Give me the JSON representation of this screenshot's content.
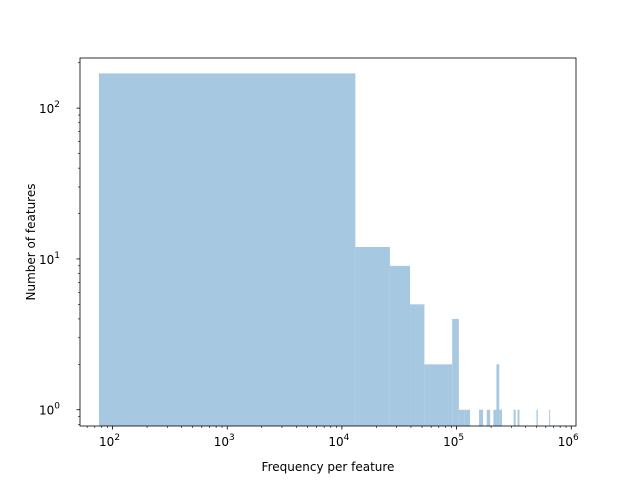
{
  "chart_data": {
    "type": "bar",
    "title": "",
    "xlabel": "Frequency per feature",
    "ylabel": "Number of features",
    "xscale": "log",
    "yscale": "log",
    "xlim": [
      52,
      1100000
    ],
    "ylim": [
      0.78,
      215
    ],
    "grid": false,
    "legend": "none",
    "bar_color": "#a6c8e0",
    "x_ticks": [
      {
        "value": 100,
        "base": "10",
        "exp": "2"
      },
      {
        "value": 1000,
        "base": "10",
        "exp": "3"
      },
      {
        "value": 10000,
        "base": "10",
        "exp": "4"
      },
      {
        "value": 100000,
        "base": "10",
        "exp": "5"
      },
      {
        "value": 1000000,
        "base": "10",
        "exp": "6"
      }
    ],
    "y_ticks": [
      {
        "value": 1,
        "base": "10",
        "exp": "0"
      },
      {
        "value": 10,
        "base": "10",
        "exp": "1"
      },
      {
        "value": 100,
        "base": "10",
        "exp": "2"
      }
    ],
    "bins": [
      {
        "x0": 76,
        "x1": 13100,
        "count": 170
      },
      {
        "x0": 13100,
        "x1": 26200,
        "count": 12
      },
      {
        "x0": 26200,
        "x1": 39300,
        "count": 9
      },
      {
        "x0": 39300,
        "x1": 52400,
        "count": 5
      },
      {
        "x0": 52400,
        "x1": 91600,
        "count": 2
      },
      {
        "x0": 91600,
        "x1": 104700,
        "count": 4
      },
      {
        "x0": 104700,
        "x1": 117800,
        "count": 1
      },
      {
        "x0": 117800,
        "x1": 130900,
        "count": 1
      },
      {
        "x0": 157100,
        "x1": 170200,
        "count": 1
      },
      {
        "x0": 183300,
        "x1": 196400,
        "count": 1
      },
      {
        "x0": 209500,
        "x1": 222600,
        "count": 1
      },
      {
        "x0": 222600,
        "x1": 235700,
        "count": 2
      },
      {
        "x0": 235700,
        "x1": 248800,
        "count": 1
      },
      {
        "x0": 314300,
        "x1": 327400,
        "count": 1
      },
      {
        "x0": 340500,
        "x1": 353600,
        "count": 1
      },
      {
        "x0": 497600,
        "x1": 510700,
        "count": 1
      },
      {
        "x0": 641700,
        "x1": 654800,
        "count": 1
      }
    ]
  }
}
